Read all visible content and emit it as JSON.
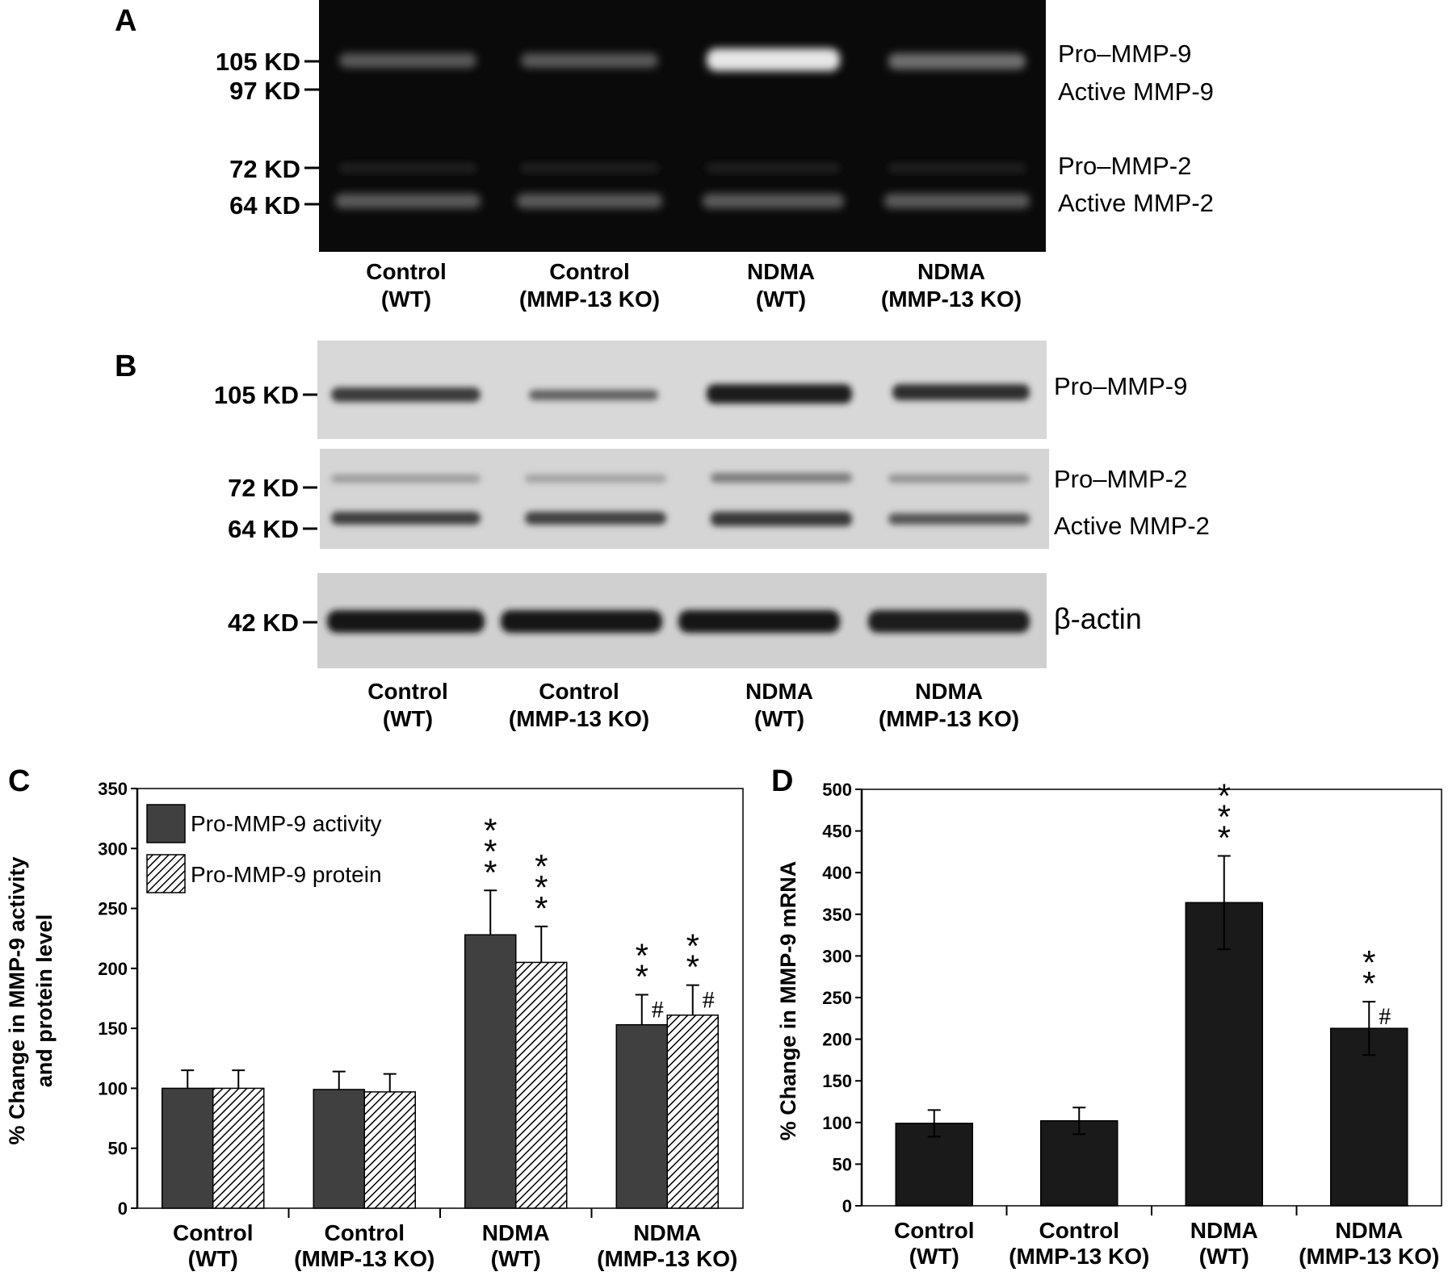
{
  "panels": {
    "a": {
      "letter": "A",
      "markers": [
        "105 KD",
        "97 KD",
        "72 KD",
        "64 KD"
      ],
      "bands": [
        "Pro–MMP-9",
        "Active MMP-9",
        "Pro–MMP-2",
        "Active MMP-2"
      ],
      "lanes": [
        {
          "line1": "Control",
          "line2": "(WT)"
        },
        {
          "line1": "Control",
          "line2": "(MMP-13 KO)"
        },
        {
          "line1": "NDMA",
          "line2": "(WT)"
        },
        {
          "line1": "NDMA",
          "line2": "(MMP-13 KO)"
        }
      ]
    },
    "b": {
      "letter": "B",
      "markers": [
        "105 KD",
        "72 KD",
        "64 KD",
        "42 KD"
      ],
      "bands": [
        "Pro–MMP-9",
        "Pro–MMP-2",
        "Active MMP-2",
        "β-actin"
      ],
      "lanes": [
        {
          "line1": "Control",
          "line2": "(WT)"
        },
        {
          "line1": "Control",
          "line2": "(MMP-13 KO)"
        },
        {
          "line1": "NDMA",
          "line2": "(WT)"
        },
        {
          "line1": "NDMA",
          "line2": "(MMP-13 KO)"
        }
      ]
    }
  },
  "chart_data": [
    {
      "panel": "C",
      "type": "bar",
      "title": "",
      "ylabel_line1": "% Change in MMP-9 activity",
      "ylabel_line2": "and protein level",
      "ylim": [
        0,
        350
      ],
      "yticks": [
        "0",
        "50",
        "100",
        "150",
        "200",
        "250",
        "300",
        "350"
      ],
      "categories": [
        {
          "line1": "Control",
          "line2": "(WT)"
        },
        {
          "line1": "Control",
          "line2": "(MMP-13 KO)"
        },
        {
          "line1": "NDMA",
          "line2": "(WT)"
        },
        {
          "line1": "NDMA",
          "line2": "(MMP-13 KO)"
        }
      ],
      "legend_position": "top-left",
      "series": [
        {
          "name": "Pro-MMP-9 activity",
          "values": [
            100,
            99,
            228,
            153
          ],
          "errors": [
            15,
            15,
            37,
            25
          ],
          "stars": [
            "",
            "",
            "***",
            "**"
          ],
          "hash": [
            "",
            "",
            "",
            "#"
          ],
          "color": "#404040"
        },
        {
          "name": "Pro-MMP-9 protein",
          "values": [
            100,
            97,
            205,
            161
          ],
          "errors": [
            15,
            15,
            30,
            25
          ],
          "stars": [
            "",
            "",
            "***",
            "**"
          ],
          "hash": [
            "",
            "",
            "",
            "#"
          ],
          "color": "#ffffff"
        }
      ]
    },
    {
      "panel": "D",
      "type": "bar",
      "title": "",
      "ylabel": "% Change in MMP-9 mRNA",
      "ylim": [
        0,
        500
      ],
      "yticks": [
        "0",
        "50",
        "100",
        "150",
        "200",
        "250",
        "300",
        "350",
        "400",
        "450",
        "500"
      ],
      "categories": [
        {
          "line1": "Control",
          "line2": "(WT)"
        },
        {
          "line1": "Control",
          "line2": "(MMP-13 KO)"
        },
        {
          "line1": "NDMA",
          "line2": "(WT)"
        },
        {
          "line1": "NDMA",
          "line2": "(MMP-13 KO)"
        }
      ],
      "series": [
        {
          "values": [
            99,
            102,
            364,
            213
          ],
          "errors": [
            16,
            16,
            56,
            32
          ],
          "stars": [
            "",
            "",
            "***",
            "**"
          ],
          "hash": [
            "",
            "",
            "",
            "#"
          ],
          "color": "#1a1a1a"
        }
      ]
    }
  ]
}
